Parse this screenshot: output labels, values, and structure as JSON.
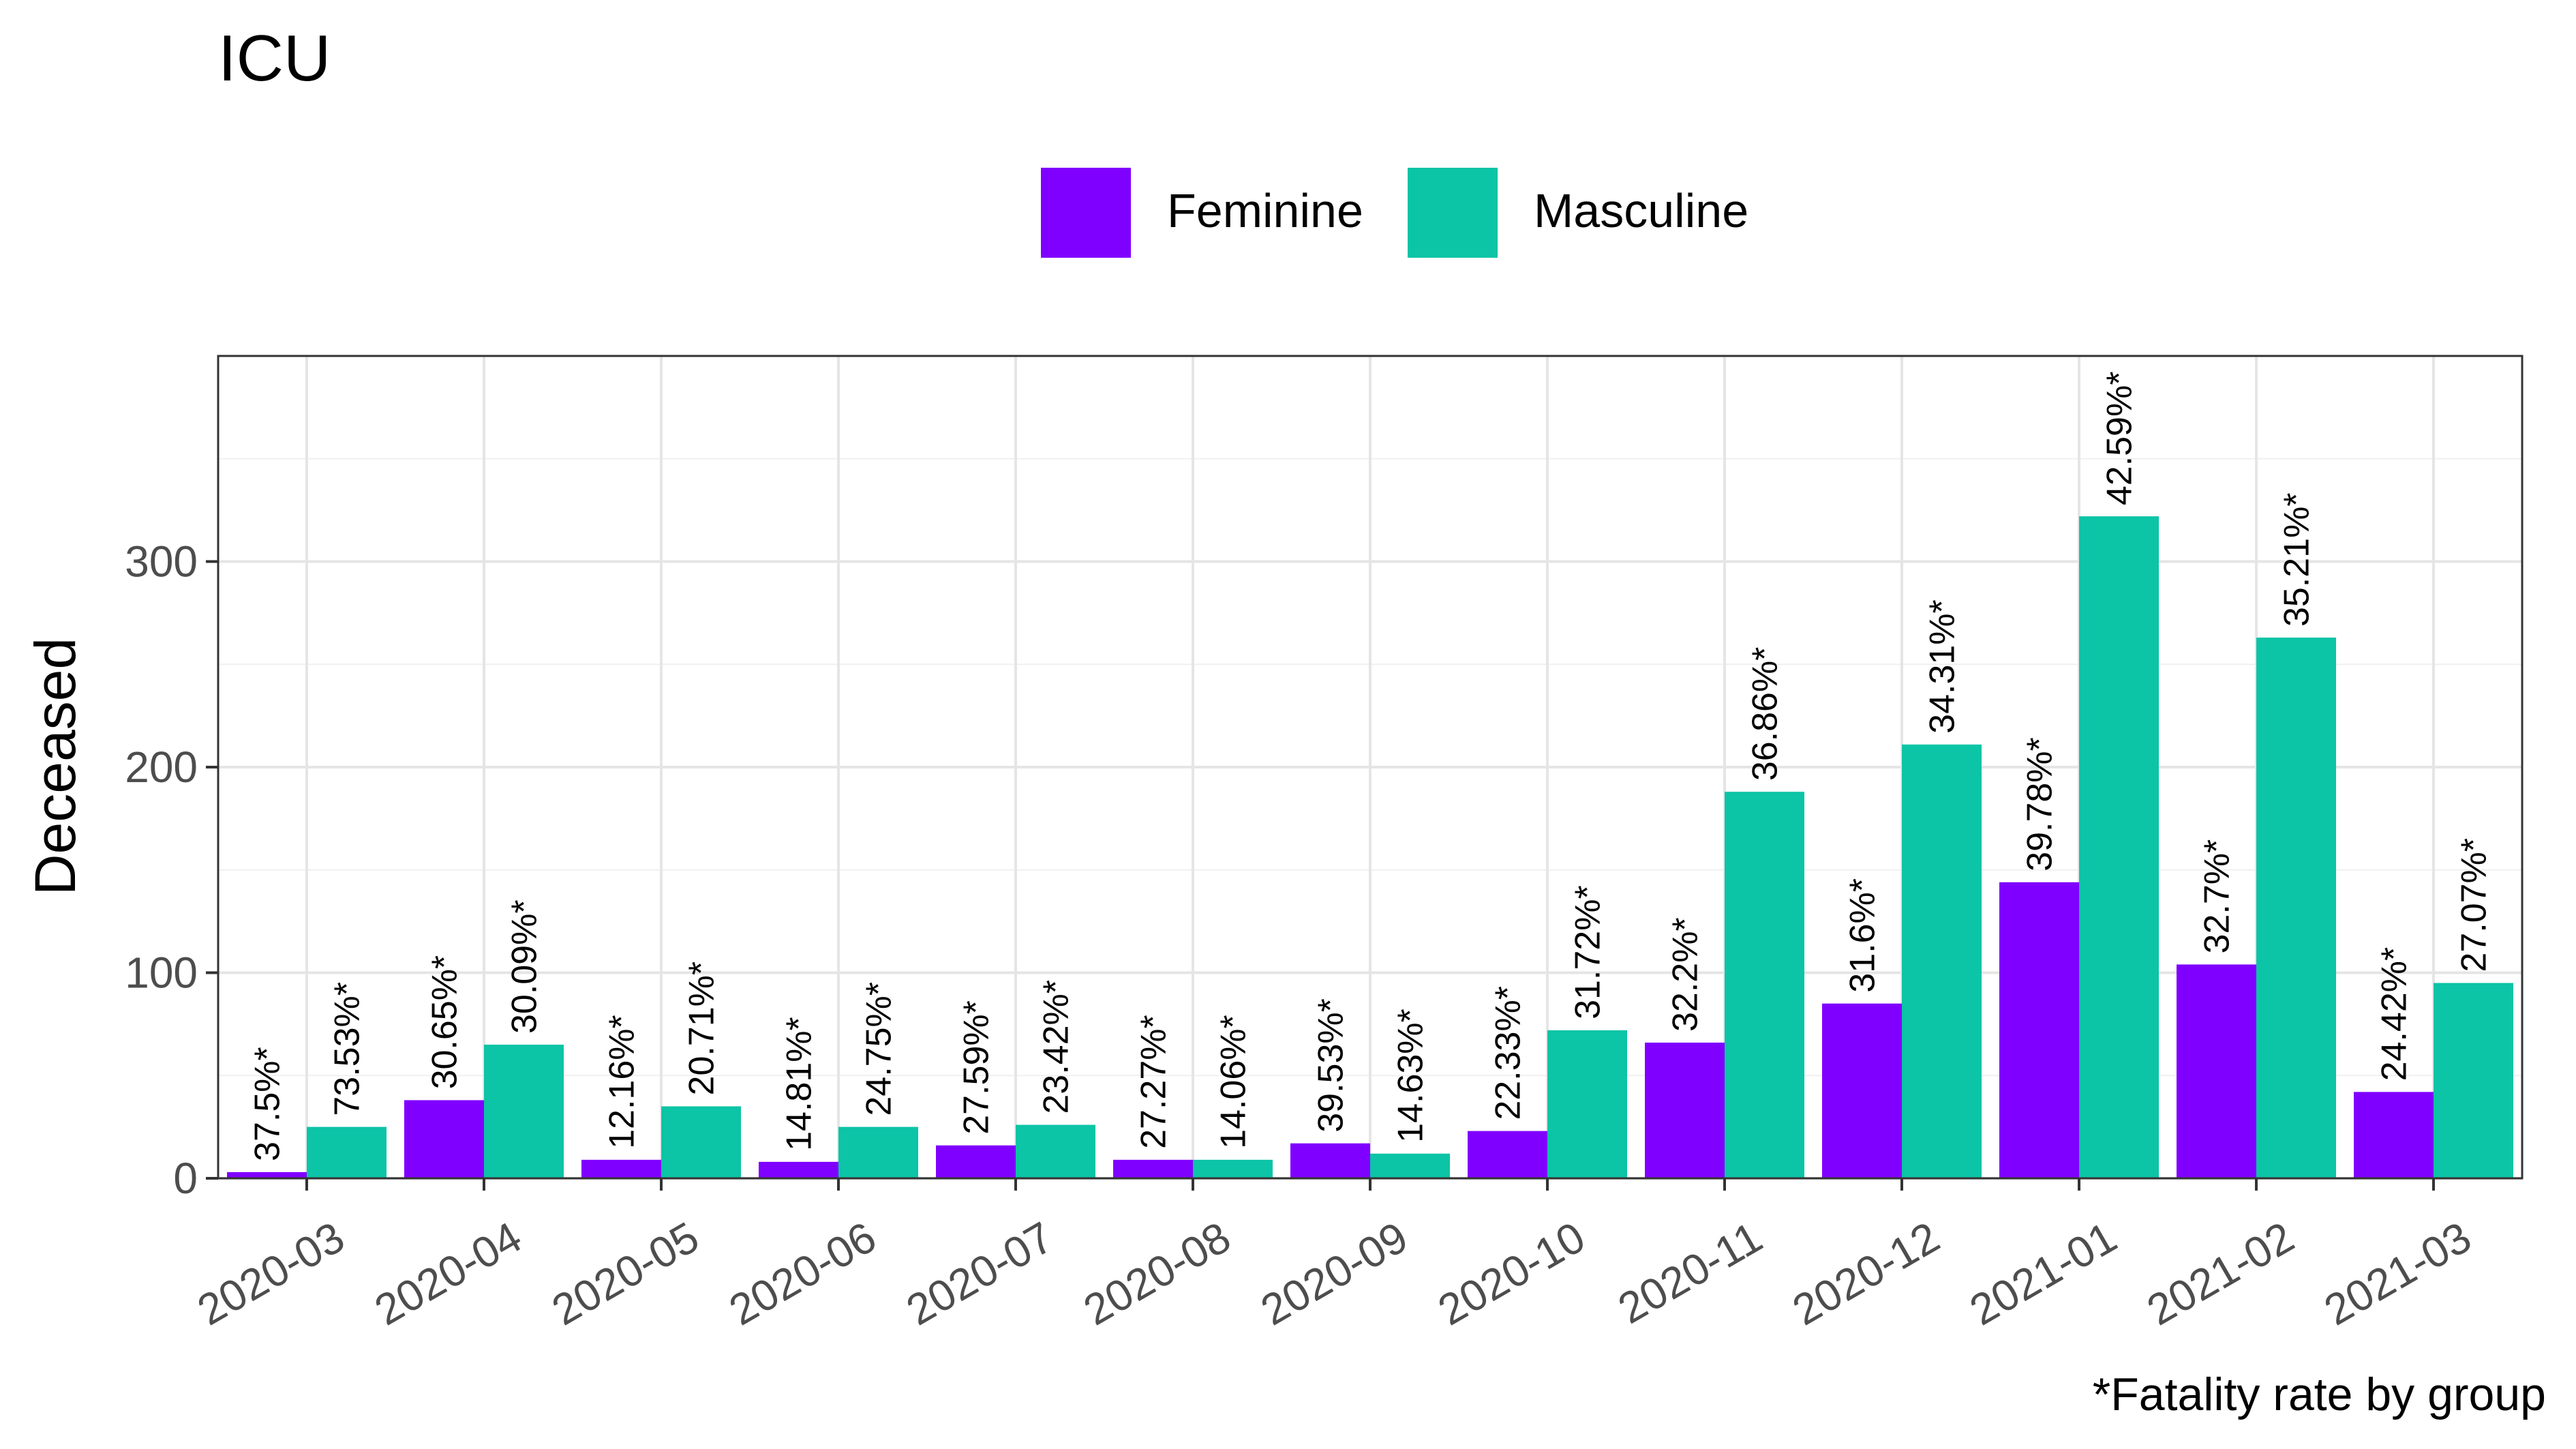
{
  "chart_data": {
    "type": "bar",
    "title": "ICU",
    "ylabel": "Deceased",
    "xlabel": "",
    "caption": "*Fatality rate by group",
    "ylim": [
      0,
      400
    ],
    "yticks": [
      0,
      100,
      200,
      300
    ],
    "grid": true,
    "legend": "top",
    "categories": [
      "2020-03",
      "2020-04",
      "2020-05",
      "2020-06",
      "2020-07",
      "2020-08",
      "2020-09",
      "2020-10",
      "2020-11",
      "2020-12",
      "2021-01",
      "2021-02",
      "2021-03"
    ],
    "series": [
      {
        "name": "Feminine",
        "color": "#8000FF",
        "values": [
          3,
          38,
          9,
          8,
          16,
          9,
          17,
          23,
          66,
          85,
          144,
          104,
          42
        ],
        "labels": [
          "37.5%*",
          "30.65%*",
          "12.16%*",
          "14.81%*",
          "27.59%*",
          "27.27%*",
          "39.53%*",
          "22.33%*",
          "32.2%*",
          "31.6%*",
          "39.78%*",
          "32.7%*",
          "24.42%*"
        ]
      },
      {
        "name": "Masculine",
        "color": "#0CC4A6",
        "values": [
          25,
          65,
          35,
          25,
          26,
          9,
          12,
          72,
          188,
          211,
          322,
          263,
          95
        ],
        "labels": [
          "73.53%*",
          "30.09%*",
          "20.71%*",
          "24.75%*",
          "23.42%*",
          "14.06%*",
          "14.63%*",
          "31.72%*",
          "36.86%*",
          "34.31%*",
          "42.59%*",
          "35.21%*",
          "27.07%*"
        ]
      }
    ]
  }
}
